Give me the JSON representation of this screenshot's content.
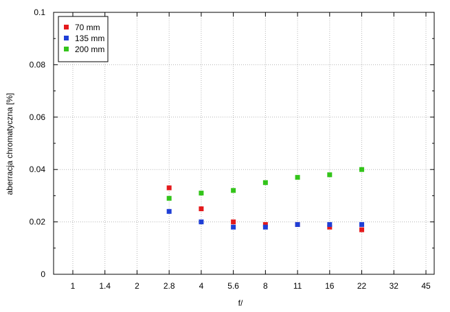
{
  "chart_data": {
    "type": "scatter",
    "title": "",
    "xlabel": "f/",
    "ylabel": "aberracja chromatyczna [%]",
    "x_categories": [
      "1",
      "1.4",
      "2",
      "2.8",
      "4",
      "5.6",
      "8",
      "11",
      "16",
      "22",
      "32",
      "45"
    ],
    "ylim": [
      0,
      0.1
    ],
    "yticks": [
      "0",
      "0.02",
      "0.04",
      "0.06",
      "0.08",
      "0.1"
    ],
    "grid": true,
    "legend_position": "top-left",
    "series": [
      {
        "name": "70 mm",
        "color": "#e41a1c",
        "points": [
          {
            "x": "2.8",
            "y": 0.033
          },
          {
            "x": "4",
            "y": 0.025
          },
          {
            "x": "5.6",
            "y": 0.02
          },
          {
            "x": "8",
            "y": 0.019
          },
          {
            "x": "11",
            "y": 0.019
          },
          {
            "x": "16",
            "y": 0.018
          },
          {
            "x": "22",
            "y": 0.017
          }
        ]
      },
      {
        "name": "135 mm",
        "color": "#1f3fd6",
        "points": [
          {
            "x": "2.8",
            "y": 0.024
          },
          {
            "x": "4",
            "y": 0.02
          },
          {
            "x": "5.6",
            "y": 0.018
          },
          {
            "x": "8",
            "y": 0.018
          },
          {
            "x": "11",
            "y": 0.019
          },
          {
            "x": "16",
            "y": 0.019
          },
          {
            "x": "22",
            "y": 0.019
          }
        ]
      },
      {
        "name": "200 mm",
        "color": "#33c41a",
        "points": [
          {
            "x": "2.8",
            "y": 0.029
          },
          {
            "x": "4",
            "y": 0.031
          },
          {
            "x": "5.6",
            "y": 0.032
          },
          {
            "x": "8",
            "y": 0.035
          },
          {
            "x": "11",
            "y": 0.037
          },
          {
            "x": "16",
            "y": 0.038
          },
          {
            "x": "22",
            "y": 0.04
          }
        ]
      }
    ]
  }
}
